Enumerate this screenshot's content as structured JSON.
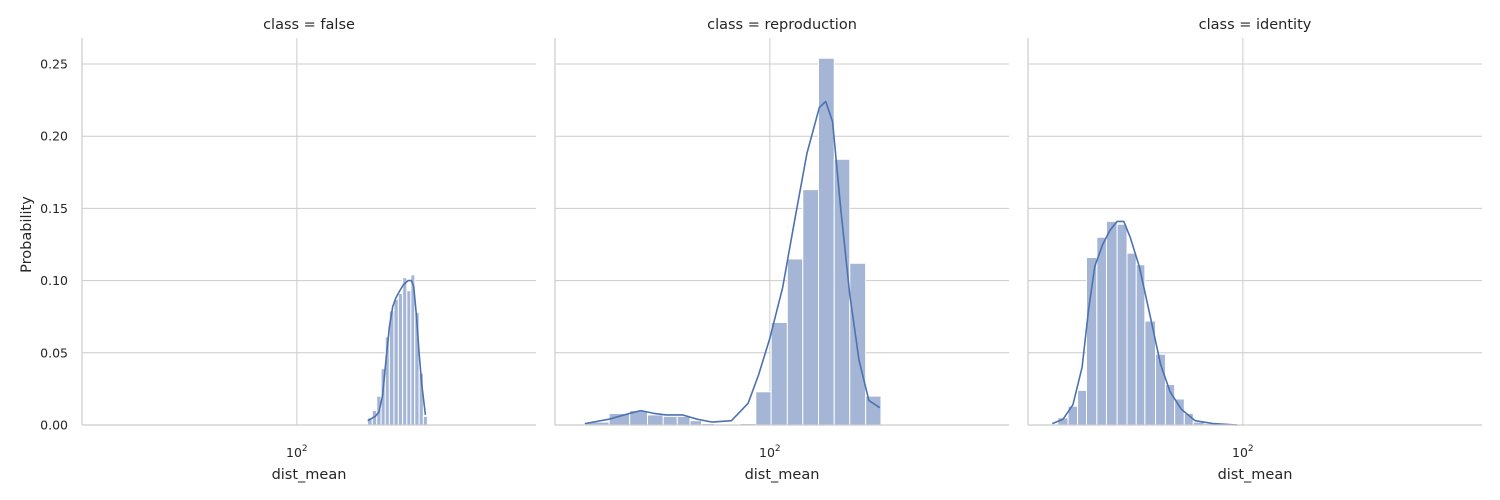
{
  "chart_data": {
    "type": "histogram",
    "ylabel": "Probability",
    "xlabel": "dist_mean",
    "x_scale": "log",
    "x_tick_label": "10^2",
    "x_tick_value": 100,
    "xlim": [
      20,
      600
    ],
    "ylim": [
      0,
      0.268
    ],
    "y_ticks": [
      0.0,
      0.05,
      0.1,
      0.15,
      0.2,
      0.25
    ],
    "y_tick_labels": [
      "0.00",
      "0.05",
      "0.10",
      "0.15",
      "0.20",
      "0.25"
    ],
    "grid": true,
    "colors": {
      "bar": "#a4b5d6",
      "line": "#4c72b0",
      "grid": "#cccccc",
      "spine": "#cccccc"
    },
    "panels": [
      {
        "title": "class = false",
        "bins": [
          [
            170,
            176,
            0.005
          ],
          [
            176,
            182,
            0.01
          ],
          [
            182,
            188,
            0.02
          ],
          [
            188,
            194,
            0.039
          ],
          [
            194,
            200,
            0.061
          ],
          [
            200,
            207,
            0.079
          ],
          [
            207,
            214,
            0.087
          ],
          [
            214,
            221,
            0.091
          ],
          [
            221,
            228,
            0.102
          ],
          [
            228,
            235,
            0.093
          ],
          [
            235,
            242,
            0.104
          ],
          [
            242,
            250,
            0.078
          ],
          [
            250,
            258,
            0.036
          ],
          [
            258,
            266,
            0.006
          ]
        ],
        "kde": [
          [
            170,
            0.003
          ],
          [
            180,
            0.006
          ],
          [
            185,
            0.009
          ],
          [
            190,
            0.02
          ],
          [
            195,
            0.045
          ],
          [
            200,
            0.068
          ],
          [
            205,
            0.082
          ],
          [
            210,
            0.088
          ],
          [
            215,
            0.092
          ],
          [
            222,
            0.097
          ],
          [
            230,
            0.1
          ],
          [
            236,
            0.1
          ],
          [
            240,
            0.096
          ],
          [
            245,
            0.076
          ],
          [
            250,
            0.05
          ],
          [
            255,
            0.028
          ],
          [
            262,
            0.007
          ]
        ]
      },
      {
        "title": "class = reproduction",
        "bins": [
          [
            25,
            30,
            0.002
          ],
          [
            30,
            35,
            0.008
          ],
          [
            35,
            40,
            0.01
          ],
          [
            40,
            45,
            0.007
          ],
          [
            45,
            50,
            0.006
          ],
          [
            50,
            55,
            0.006
          ],
          [
            55,
            60,
            0.003
          ],
          [
            60,
            66,
            0.001
          ],
          [
            66,
            73,
            0.0
          ],
          [
            73,
            80,
            0.0
          ],
          [
            80,
            90,
            0.001
          ],
          [
            90,
            101,
            0.023
          ],
          [
            101,
            114,
            0.071
          ],
          [
            114,
            128,
            0.115
          ],
          [
            128,
            144,
            0.163
          ],
          [
            144,
            162,
            0.254
          ],
          [
            162,
            182,
            0.184
          ],
          [
            182,
            205,
            0.112
          ],
          [
            205,
            230,
            0.02
          ]
        ],
        "kde": [
          [
            25,
            0.001
          ],
          [
            30,
            0.004
          ],
          [
            35,
            0.008
          ],
          [
            38,
            0.01
          ],
          [
            42,
            0.008
          ],
          [
            46,
            0.007
          ],
          [
            52,
            0.007
          ],
          [
            58,
            0.004
          ],
          [
            65,
            0.002
          ],
          [
            75,
            0.003
          ],
          [
            85,
            0.015
          ],
          [
            92,
            0.035
          ],
          [
            100,
            0.06
          ],
          [
            110,
            0.095
          ],
          [
            120,
            0.14
          ],
          [
            132,
            0.188
          ],
          [
            145,
            0.22
          ],
          [
            152,
            0.224
          ],
          [
            160,
            0.21
          ],
          [
            170,
            0.15
          ],
          [
            182,
            0.09
          ],
          [
            195,
            0.045
          ],
          [
            210,
            0.017
          ],
          [
            228,
            0.012
          ]
        ]
      },
      {
        "title": "class = identity",
        "bins": [
          [
            25,
            27,
            0.005
          ],
          [
            27,
            29,
            0.013
          ],
          [
            29,
            31,
            0.024
          ],
          [
            31,
            33.5,
            0.116
          ],
          [
            33.5,
            36,
            0.13
          ],
          [
            36,
            39,
            0.141
          ],
          [
            39,
            42,
            0.139
          ],
          [
            42,
            45,
            0.119
          ],
          [
            45,
            48,
            0.111
          ],
          [
            48,
            52,
            0.072
          ],
          [
            52,
            56,
            0.049
          ],
          [
            56,
            60,
            0.028
          ],
          [
            60,
            64.5,
            0.018
          ],
          [
            64.5,
            69,
            0.008
          ],
          [
            69,
            75,
            0.002
          ],
          [
            75,
            85,
            0.001
          ]
        ],
        "kde": [
          [
            24,
            0.001
          ],
          [
            26,
            0.004
          ],
          [
            28,
            0.014
          ],
          [
            30,
            0.04
          ],
          [
            31.5,
            0.08
          ],
          [
            33,
            0.11
          ],
          [
            35,
            0.125
          ],
          [
            37,
            0.135
          ],
          [
            39,
            0.141
          ],
          [
            41,
            0.141
          ],
          [
            43,
            0.13
          ],
          [
            46,
            0.11
          ],
          [
            50,
            0.075
          ],
          [
            54,
            0.042
          ],
          [
            58,
            0.023
          ],
          [
            63,
            0.011
          ],
          [
            70,
            0.003
          ],
          [
            80,
            0.001
          ],
          [
            96,
            0.0
          ]
        ]
      }
    ]
  }
}
